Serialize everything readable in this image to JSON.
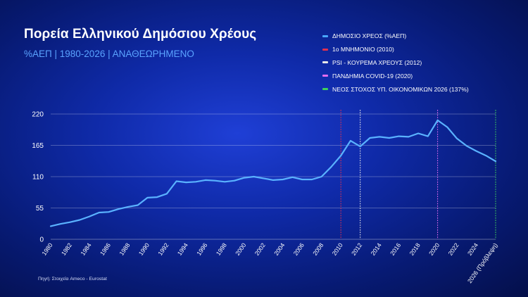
{
  "title": "Πορεία Ελληνικού Δημόσιου Χρέους",
  "subtitle": "%ΑΕΠ | 1980-2026 | ΑΝΑΘΕΩΡΗΜΕΝΟ",
  "source": "Πηγή: Στοιχεία Ameco - Eurostat",
  "legend": [
    {
      "label": "ΔΗΜΟΣΙΟ ΧΡΕΟΣ (%ΑΕΠ)",
      "color": "#4aa8ff"
    },
    {
      "label": "1ο ΜΝΗΜΟΝΙΟ (2010)",
      "color": "#e0314f"
    },
    {
      "label": "PSI - ΚΟΥΡΕΜΑ ΧΡΕΟΥΣ (2012)",
      "color": "#e8e8e8"
    },
    {
      "label": "ΠΑΝΔΗΜΙΑ COVID-19 (2020)",
      "color": "#e36cf0"
    },
    {
      "label": "ΝΕΟΣ ΣΤΟΧΟΣ ΥΠ. ΟΙΚΟΝΟΜΙΚΩΝ 2026 (137%)",
      "color": "#3fd15a"
    }
  ],
  "chart_data": {
    "type": "line",
    "ylim": [
      0,
      220
    ],
    "yticks": [
      0,
      55,
      110,
      165,
      220
    ],
    "x": [
      1980,
      1981,
      1982,
      1983,
      1984,
      1985,
      1986,
      1987,
      1988,
      1989,
      1990,
      1991,
      1992,
      1993,
      1994,
      1995,
      1996,
      1997,
      1998,
      1999,
      2000,
      2001,
      2002,
      2003,
      2004,
      2005,
      2006,
      2007,
      2008,
      2009,
      2010,
      2011,
      2012,
      2013,
      2014,
      2015,
      2016,
      2017,
      2018,
      2019,
      2020,
      2021,
      2022,
      2023,
      2024,
      2025,
      2026
    ],
    "xtick_labels": [
      "1980",
      "1982",
      "1984",
      "1986",
      "1988",
      "1990",
      "1992",
      "1994",
      "1996",
      "1998",
      "2000",
      "2002",
      "2004",
      "2006",
      "2008",
      "2010",
      "2012",
      "2014",
      "2016",
      "2018",
      "2020",
      "2022",
      "2024",
      "2026 (Πρόβλεψη)"
    ],
    "xtick_values": [
      1980,
      1982,
      1984,
      1986,
      1988,
      1990,
      1992,
      1994,
      1996,
      1998,
      2000,
      2002,
      2004,
      2006,
      2008,
      2010,
      2012,
      2014,
      2016,
      2018,
      2020,
      2022,
      2024,
      2026
    ],
    "series": [
      {
        "name": "ΔΗΜΟΣΙΟ ΧΡΕΟΣ (%ΑΕΠ)",
        "color": "#5ab2ff",
        "values": [
          23,
          27,
          30,
          34,
          40,
          47,
          48,
          53,
          57,
          60,
          73,
          74,
          80,
          102,
          100,
          101,
          104,
          103,
          101,
          103,
          108,
          110,
          107,
          104,
          105,
          109,
          105,
          105,
          110,
          127,
          147,
          173,
          163,
          178,
          180,
          178,
          181,
          180,
          186,
          181,
          209,
          197,
          177,
          164,
          155,
          147,
          137
        ]
      }
    ],
    "markers": [
      {
        "x": 2010,
        "color": "#e0314f",
        "style": "dotted"
      },
      {
        "x": 2012,
        "color": "#e8e8e8",
        "style": "dotted"
      },
      {
        "x": 2020,
        "color": "#e36cf0",
        "style": "dotted"
      },
      {
        "x": 2026,
        "color": "#3fd15a",
        "style": "dotted"
      }
    ],
    "grid": true
  }
}
